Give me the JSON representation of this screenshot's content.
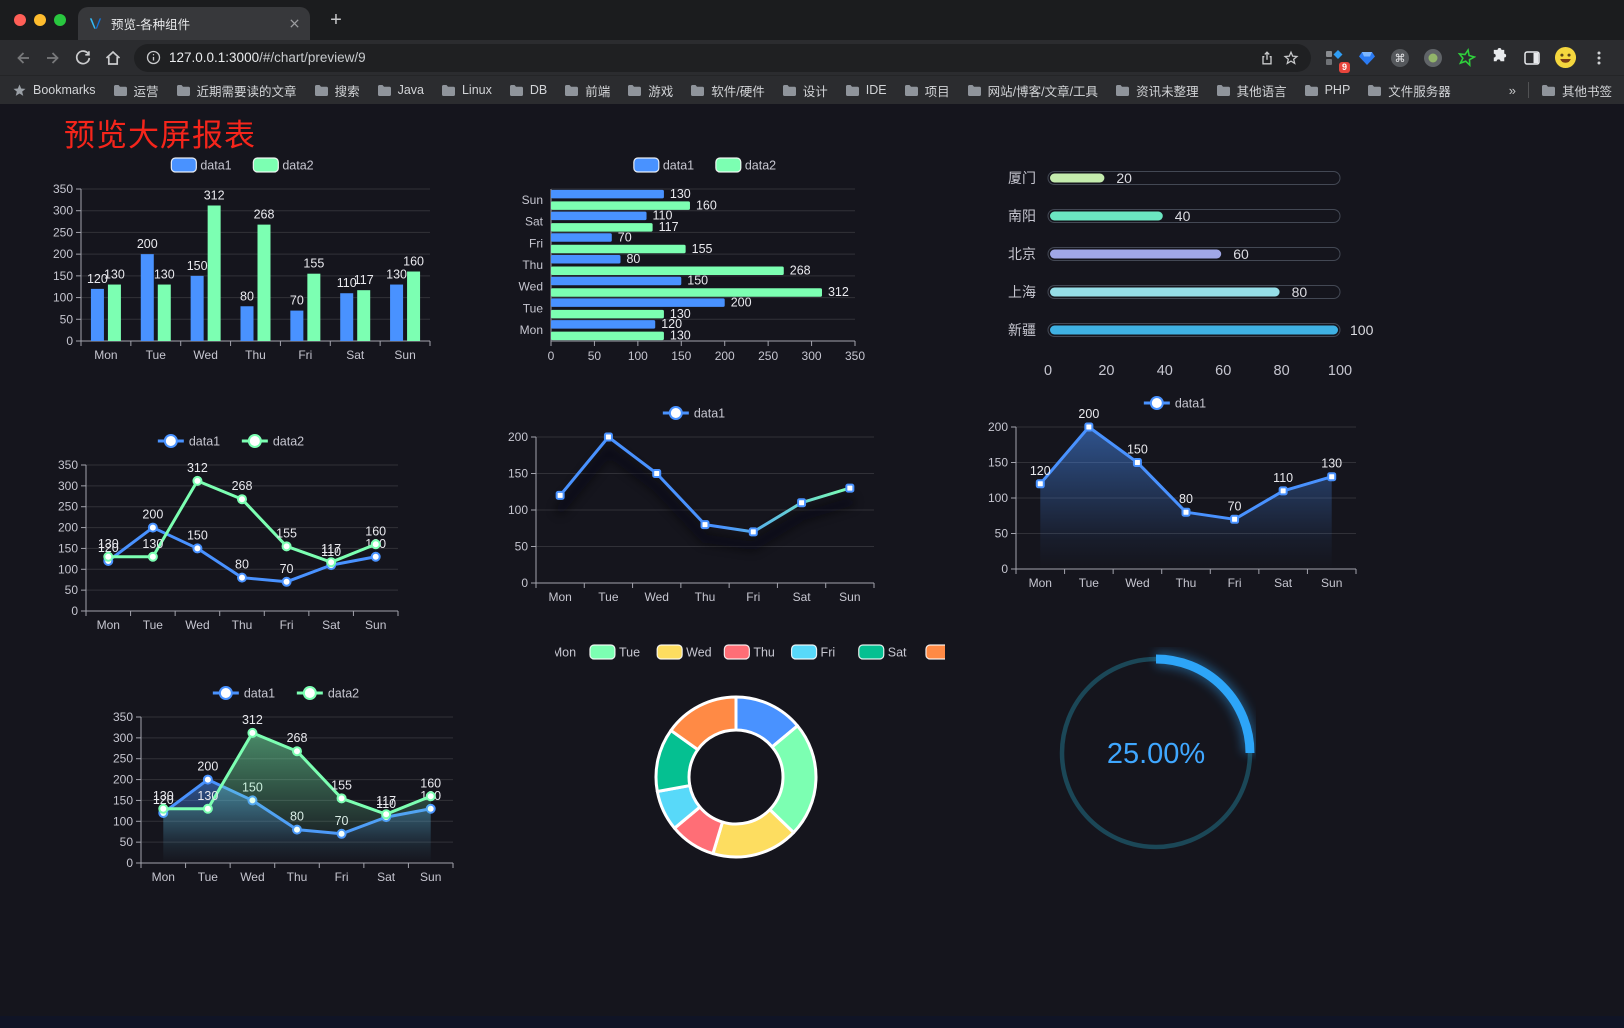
{
  "browser": {
    "tab": {
      "title": "预览-各种组件"
    },
    "new_tab_label": "+",
    "url": {
      "host": "127.0.0.1:3000",
      "path": "/#/chart/preview/9"
    },
    "extension_badge": "9",
    "bookmarks_label": "Bookmarks",
    "bookmarks": [
      "运营",
      "近期需要读的文章",
      "搜索",
      "Java",
      "Linux",
      "DB",
      "前端",
      "游戏",
      "软件/硬件",
      "设计",
      "IDE",
      "项目",
      "网站/博客/文章/工具",
      "资讯未整理",
      "其他语言",
      "PHP",
      "文件服务器"
    ],
    "bookmarks_overflow": "»",
    "other_bookmarks": "其他书签"
  },
  "page": {
    "title": "预览大屏报表",
    "title_color": "#f5251b",
    "background": "#15151d"
  },
  "chart_data": [
    {
      "id": "bar-grouped",
      "type": "bar",
      "legend": [
        "data1",
        "data2"
      ],
      "legend_position": "top",
      "categories": [
        "Mon",
        "Tue",
        "Wed",
        "Thu",
        "Fri",
        "Sat",
        "Sun"
      ],
      "series": [
        {
          "name": "data1",
          "color": "#4992ff",
          "values": [
            120,
            200,
            150,
            80,
            70,
            110,
            130
          ]
        },
        {
          "name": "data2",
          "color": "#7cffb2",
          "values": [
            130,
            130,
            312,
            268,
            155,
            117,
            160
          ]
        }
      ],
      "ylim": [
        0,
        350
      ],
      "yticks": [
        0,
        50,
        100,
        150,
        200,
        250,
        300,
        350
      ],
      "grid": true,
      "labels": true
    },
    {
      "id": "bar-horizontal",
      "type": "bar-h",
      "legend": [
        "data1",
        "data2"
      ],
      "legend_position": "top",
      "categories": [
        "Mon",
        "Tue",
        "Wed",
        "Thu",
        "Fri",
        "Sat",
        "Sun"
      ],
      "series": [
        {
          "name": "data1",
          "color": "#4992ff",
          "values": [
            120,
            200,
            150,
            80,
            70,
            110,
            130
          ]
        },
        {
          "name": "data2",
          "color": "#7cffb2",
          "values": [
            130,
            130,
            312,
            268,
            155,
            117,
            160
          ]
        }
      ],
      "xlim": [
        0,
        350
      ],
      "xticks": [
        0,
        50,
        100,
        150,
        200,
        250,
        300,
        350
      ],
      "grid": true,
      "labels": true
    },
    {
      "id": "capsule",
      "type": "capsule",
      "categories": [
        "厦门",
        "南阳",
        "北京",
        "上海",
        "新疆"
      ],
      "values": [
        20,
        40,
        60,
        80,
        100
      ],
      "colors": [
        "#c4ebad",
        "#6be6c1",
        "#a0a7e6",
        "#96dee8",
        "#3fb1e3"
      ],
      "xlim": [
        0,
        100
      ],
      "xticks": [
        0,
        20,
        40,
        60,
        80,
        100
      ],
      "labels": true
    },
    {
      "id": "line-two",
      "type": "line",
      "marker": "circle",
      "labels": true,
      "legend": [
        "data1",
        "data2"
      ],
      "legend_position": "top",
      "categories": [
        "Mon",
        "Tue",
        "Wed",
        "Thu",
        "Fri",
        "Sat",
        "Sun"
      ],
      "series": [
        {
          "name": "data1",
          "color": "#4992ff",
          "values": [
            120,
            200,
            150,
            80,
            70,
            110,
            130
          ]
        },
        {
          "name": "data2",
          "color": "#7cffb2",
          "values": [
            130,
            130,
            312,
            268,
            155,
            117,
            160
          ]
        }
      ],
      "ylim": [
        0,
        350
      ],
      "yticks": [
        0,
        50,
        100,
        150,
        200,
        250,
        300,
        350
      ],
      "grid": true
    },
    {
      "id": "line-gradient",
      "type": "line",
      "marker": "rect",
      "labels": false,
      "legend": [
        "data1"
      ],
      "legend_position": "top",
      "categories": [
        "Mon",
        "Tue",
        "Wed",
        "Thu",
        "Fri",
        "Sat",
        "Sun"
      ],
      "series": [
        {
          "name": "data1",
          "gradient": [
            "#4992ff",
            "#7cffb2"
          ],
          "color": "#4992ff",
          "values": [
            120,
            200,
            150,
            80,
            70,
            110,
            130
          ]
        }
      ],
      "ylim": [
        0,
        200
      ],
      "yticks": [
        0,
        50,
        100,
        150,
        200
      ],
      "grid": true
    },
    {
      "id": "area-single",
      "type": "area",
      "marker": "rect",
      "labels": true,
      "legend": [
        "data1"
      ],
      "legend_position": "top",
      "categories": [
        "Mon",
        "Tue",
        "Wed",
        "Thu",
        "Fri",
        "Sat",
        "Sun"
      ],
      "series": [
        {
          "name": "data1",
          "color": "#4992ff",
          "values": [
            120,
            200,
            150,
            80,
            70,
            110,
            130
          ]
        }
      ],
      "ylim": [
        0,
        200
      ],
      "yticks": [
        0,
        50,
        100,
        150,
        200
      ],
      "grid": true
    },
    {
      "id": "area-two",
      "type": "area",
      "marker": "circle",
      "labels": true,
      "legend": [
        "data1",
        "data2"
      ],
      "legend_position": "top",
      "categories": [
        "Mon",
        "Tue",
        "Wed",
        "Thu",
        "Fri",
        "Sat",
        "Sun"
      ],
      "series": [
        {
          "name": "data1",
          "color": "#4992ff",
          "values": [
            120,
            200,
            150,
            80,
            70,
            110,
            130
          ]
        },
        {
          "name": "data2",
          "color": "#7cffb2",
          "values": [
            130,
            130,
            312,
            268,
            155,
            117,
            160
          ]
        }
      ],
      "ylim": [
        0,
        350
      ],
      "yticks": [
        0,
        50,
        100,
        150,
        200,
        250,
        300,
        350
      ],
      "grid": true
    },
    {
      "id": "donut",
      "type": "pie",
      "legend": [
        "Mon",
        "Tue",
        "Wed",
        "Thu",
        "Fri",
        "Sat",
        "Sun"
      ],
      "legend_position": "top",
      "values": [
        120,
        200,
        150,
        80,
        70,
        110,
        130
      ],
      "colors": [
        "#4992ff",
        "#7cffb2",
        "#fddd60",
        "#ff6e76",
        "#58d9f9",
        "#05c091",
        "#ff8a45"
      ]
    },
    {
      "id": "gauge",
      "type": "gauge",
      "value": 25,
      "label": "25.00%",
      "color": "#2da5f8",
      "track": "#1b4757",
      "text_color": "#3fa7ff"
    }
  ]
}
